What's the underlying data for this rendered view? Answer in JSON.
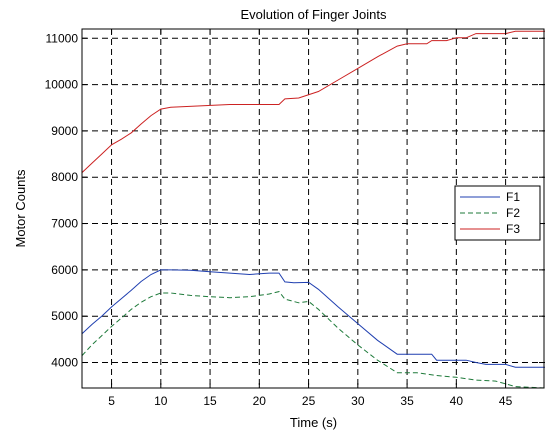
{
  "chart_data": {
    "type": "line",
    "title": "Evolution of Finger Joints",
    "xlabel": "Time (s)",
    "ylabel": "Motor Counts",
    "xlim": [
      2,
      49
    ],
    "ylim": [
      3450,
      11200
    ],
    "xticks": [
      5,
      10,
      15,
      20,
      25,
      30,
      35,
      40,
      45
    ],
    "yticks": [
      4000,
      5000,
      6000,
      7000,
      8000,
      9000,
      10000,
      11000
    ],
    "grid": true,
    "legend_position": "right",
    "series": [
      {
        "name": "F1",
        "color": "#1f3fb0",
        "style": "solid",
        "x": [
          2,
          3,
          4,
          5,
          6,
          7,
          8,
          9,
          10,
          11,
          13,
          15,
          17,
          19,
          21,
          22,
          22.6,
          23.5,
          25,
          26,
          28,
          30,
          32,
          34,
          36,
          37.5,
          38,
          41,
          42,
          43,
          45,
          46,
          49
        ],
        "y": [
          4620,
          4820,
          5000,
          5200,
          5380,
          5560,
          5750,
          5900,
          6000,
          6000,
          5990,
          5960,
          5930,
          5900,
          5930,
          5930,
          5740,
          5720,
          5730,
          5580,
          5200,
          4840,
          4480,
          4180,
          4180,
          4180,
          4050,
          4050,
          4000,
          3960,
          3960,
          3900,
          3900
        ]
      },
      {
        "name": "F2",
        "color": "#1e7a3a",
        "style": "dashed",
        "x": [
          2,
          3,
          4,
          5,
          6,
          7,
          8,
          9,
          10,
          11,
          13,
          15,
          17,
          19,
          21,
          22,
          22.6,
          24,
          25,
          26,
          28,
          30,
          32,
          34,
          36,
          38,
          40,
          42,
          44,
          46,
          49
        ],
        "y": [
          4150,
          4380,
          4580,
          4780,
          4960,
          5150,
          5300,
          5420,
          5500,
          5500,
          5450,
          5420,
          5400,
          5420,
          5480,
          5530,
          5370,
          5290,
          5320,
          5150,
          4740,
          4380,
          4050,
          3780,
          3780,
          3720,
          3680,
          3620,
          3600,
          3480,
          3450
        ]
      },
      {
        "name": "F3",
        "color": "#cc2222",
        "style": "solid",
        "x": [
          2,
          3,
          4,
          5,
          6,
          7,
          8,
          9,
          10,
          11,
          14,
          17,
          20,
          22,
          22.6,
          24,
          26,
          28,
          30,
          32,
          34,
          35,
          37,
          37.5,
          39,
          40,
          41,
          42,
          45,
          46,
          49
        ],
        "y": [
          8100,
          8300,
          8500,
          8700,
          8820,
          8960,
          9150,
          9330,
          9470,
          9510,
          9540,
          9570,
          9570,
          9570,
          9690,
          9710,
          9850,
          10100,
          10350,
          10600,
          10830,
          10880,
          10880,
          10950,
          10950,
          11010,
          11010,
          11100,
          11100,
          11150,
          11150
        ]
      }
    ]
  }
}
